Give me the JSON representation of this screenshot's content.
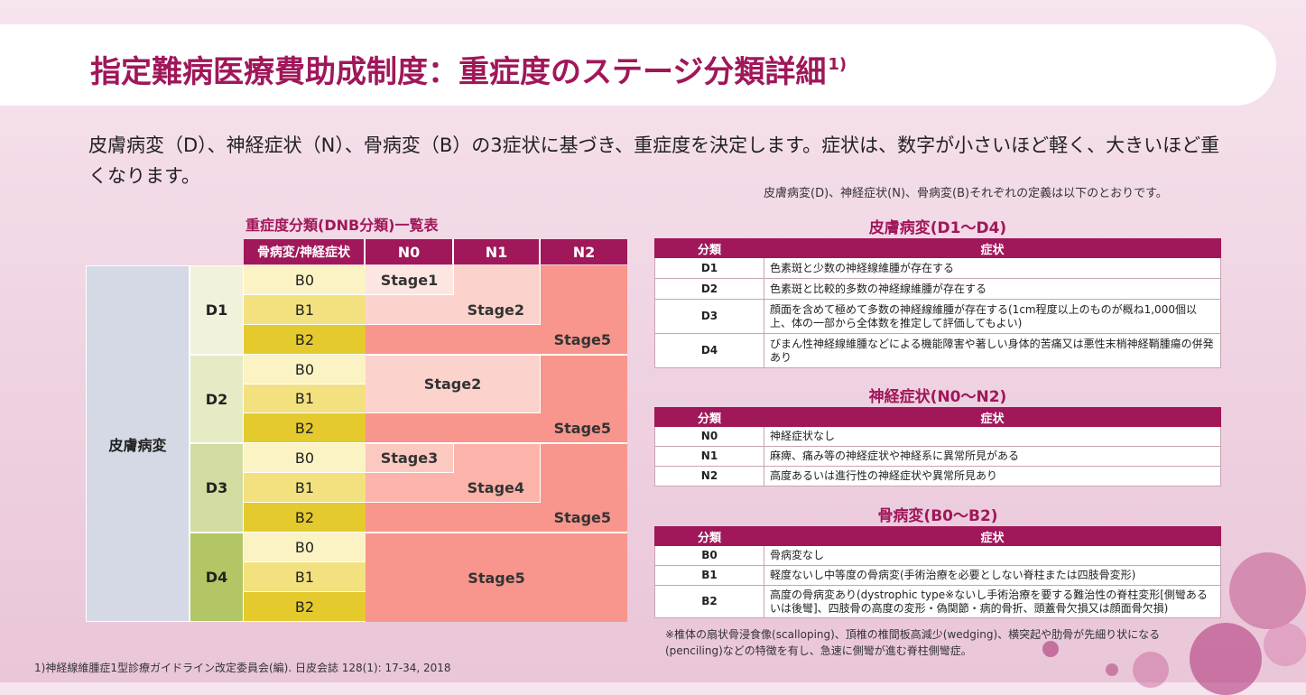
{
  "title": "指定難病医療費助成制度：重症度のステージ分類詳細",
  "title_ref": "1)",
  "intro": "皮膚病変（D）、神経症状（N）、骨病変（B）の3症状に基づき、重症度を決定します。症状は、数字が小さいほど軽く、大きいほど重くなります。",
  "definitions_note": "皮膚病変(D)、神経症状(N)、骨病変(B)それぞれの定義は以下のとおりです。",
  "dnb": {
    "caption": "重症度分類(DNB分類)一覧表",
    "header_corner": "骨病変/神経症状",
    "n_headers": [
      "N0",
      "N1",
      "N2"
    ],
    "row_group": "皮膚病変",
    "d_labels": [
      "D1",
      "D2",
      "D3",
      "D4"
    ],
    "b_labels": [
      "B0",
      "B1",
      "B2"
    ],
    "stages": {
      "s1": "Stage1",
      "s2a": "Stage2",
      "s5a": "Stage5",
      "s2b": "Stage2",
      "s5b": "Stage5",
      "s3": "Stage3",
      "s4": "Stage4",
      "s5c": "Stage5",
      "s5d": "Stage5"
    }
  },
  "skin": {
    "title": "皮膚病変(D1〜D4)",
    "col_class": "分類",
    "col_symptom": "症状",
    "rows": [
      {
        "k": "D1",
        "v": "色素斑と少数の神経線維腫が存在する"
      },
      {
        "k": "D2",
        "v": "色素斑と比較的多数の神経線維腫が存在する"
      },
      {
        "k": "D3",
        "v": "顔面を含めて極めて多数の神経線維腫が存在する(1cm程度以上のものが概ね1,000個以上、体の一部から全体数を推定して評価してもよい)"
      },
      {
        "k": "D4",
        "v": "びまん性神経線維腫などによる機能障害や著しい身体的苦痛又は悪性末梢神経鞘腫瘍の併発あり"
      }
    ]
  },
  "nerve": {
    "title": "神経症状(N0〜N2)",
    "col_class": "分類",
    "col_symptom": "症状",
    "rows": [
      {
        "k": "N0",
        "v": "神経症状なし"
      },
      {
        "k": "N1",
        "v": "麻痺、痛み等の神経症状や神経系に異常所見がある"
      },
      {
        "k": "N2",
        "v": "高度あるいは進行性の神経症状や異常所見あり"
      }
    ]
  },
  "bone": {
    "title": "骨病変(B0〜B2)",
    "col_class": "分類",
    "col_symptom": "症状",
    "rows": [
      {
        "k": "B0",
        "v": "骨病変なし"
      },
      {
        "k": "B1",
        "v": "軽度ないし中等度の骨病変(手術治療を必要としない脊柱または四肢骨変形)"
      },
      {
        "k": "B2",
        "v": "高度の骨病変あり(dystrophic type※ないし手術治療を要する難治性の脊柱変形[側彎あるいは後彎]、四肢骨の高度の変形・偽関節・病的骨折、頭蓋骨欠損又は顔面骨欠損)"
      }
    ]
  },
  "footnote": "※椎体の扇状骨浸食像(scalloping)、頂椎の椎間板高減少(wedging)、横突起や肋骨が先細り状になる(penciling)などの特徴を有し、急速に側彎が進む脊柱側彎症。",
  "reference": "1)神経線維腫症1型診療ガイドライン改定委員会(編). 日皮会誌 128(1): 17-34, 2018",
  "colors": {
    "brand": "#a0175a",
    "stage1": "#fde6e2",
    "stage2": "#fcd3cc",
    "stage3": "#fcc9c0",
    "stage4": "#fbb3aa",
    "stage5": "#f8958c",
    "d1": "#f2f2dc",
    "d2": "#e6ebc6",
    "d3": "#d2dca0",
    "d4": "#b3c665",
    "b0": "#fbf3c4",
    "b1": "#f2e17e",
    "b2": "#e4ca2d"
  }
}
